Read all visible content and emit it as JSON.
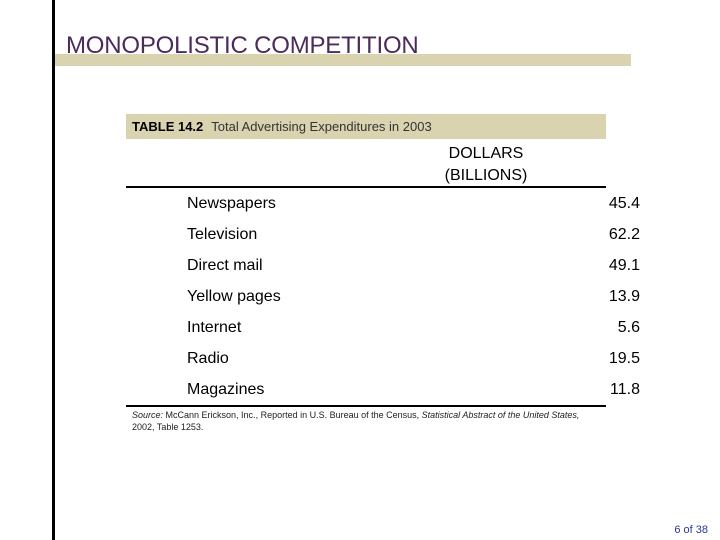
{
  "slide": {
    "title": "MONOPOLISTIC COMPETITION",
    "page": "6 of 38"
  },
  "table": {
    "number": "TABLE 14.2",
    "caption": "Total Advertising Expenditures in 2003",
    "column_header_line1": "DOLLARS",
    "column_header_line2": "(BILLIONS)",
    "rows": [
      {
        "label": "Newspapers",
        "value": "45.4"
      },
      {
        "label": "Television",
        "value": "62.2"
      },
      {
        "label": "Direct mail",
        "value": "49.1"
      },
      {
        "label": "Yellow pages",
        "value": "13.9"
      },
      {
        "label": "Internet",
        "value": "5.6"
      },
      {
        "label": "Radio",
        "value": "19.5"
      },
      {
        "label": "Magazines",
        "value": "11.8"
      }
    ]
  },
  "source": {
    "prefix": "Source:",
    "text": " McCann Erickson, Inc., Reported in U.S. Bureau of the Census,",
    "italic": " Statistical Abstract of the United States,",
    "suffix": " 2002, Table 1253."
  }
}
